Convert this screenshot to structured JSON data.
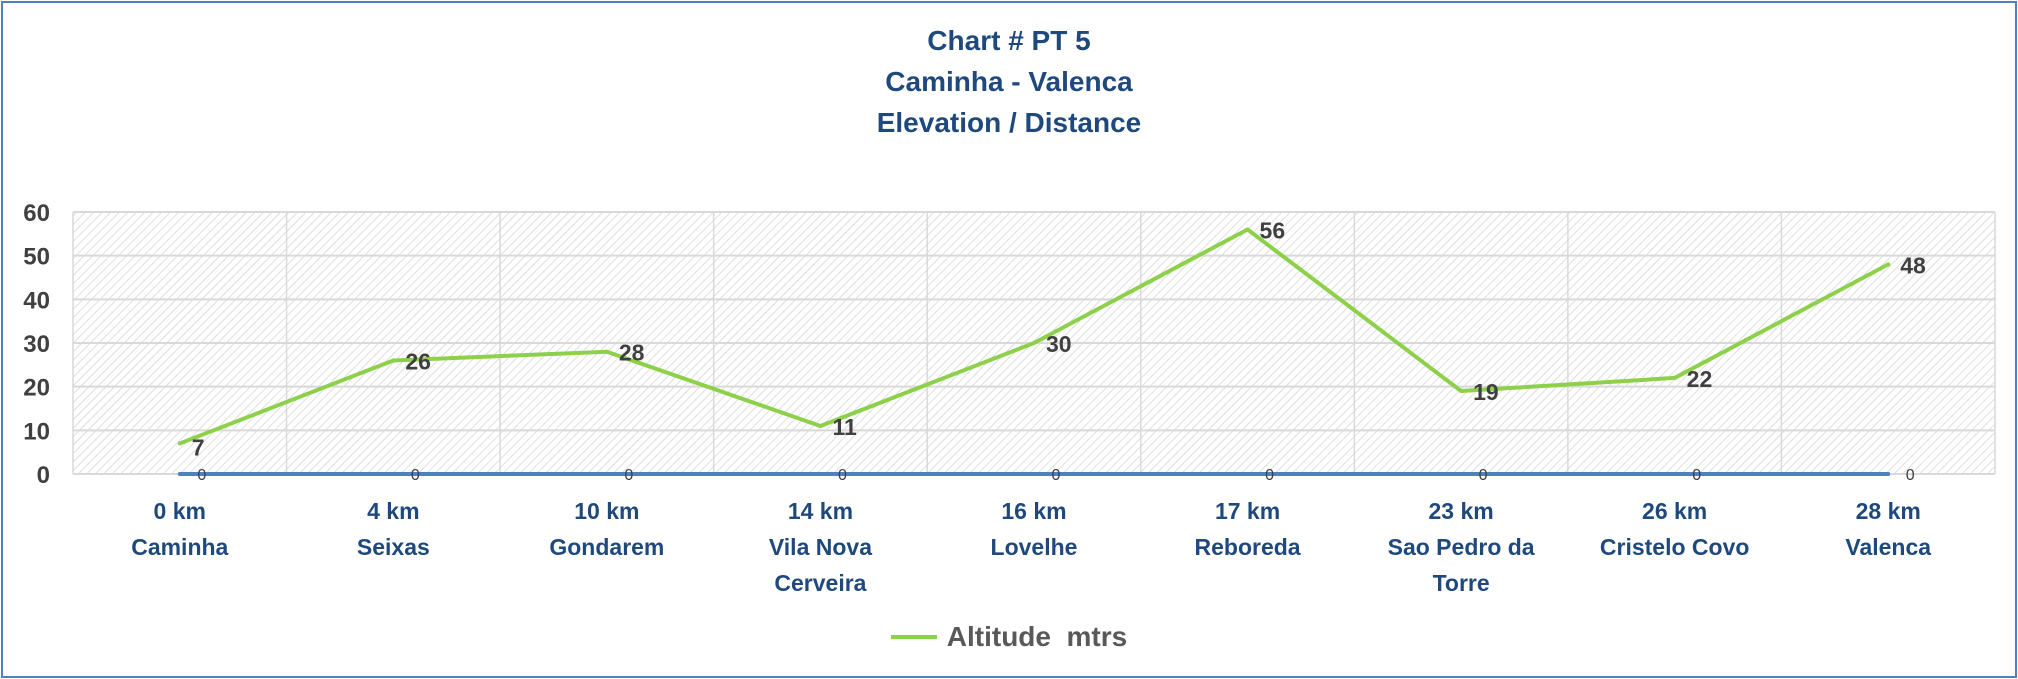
{
  "chart_data": {
    "type": "line",
    "title": [
      "Chart # PT 5",
      "Caminha - Valenca",
      "Elevation / Distance"
    ],
    "categories": [
      [
        "0 km",
        "Caminha"
      ],
      [
        "4 km",
        "Seixas"
      ],
      [
        "10 km",
        "Gondarem"
      ],
      [
        "14 km",
        "Vila Nova",
        "Cerveira"
      ],
      [
        "16 km",
        "Lovelhe"
      ],
      [
        "17 km",
        "Reboreda"
      ],
      [
        "23 km",
        "Sao Pedro da",
        "Torre"
      ],
      [
        "26 km",
        "Cristelo Covo"
      ],
      [
        "28 km",
        "Valenca"
      ]
    ],
    "series": [
      {
        "name": "Altitude  mtrs",
        "values": [
          7,
          26,
          28,
          11,
          30,
          56,
          19,
          22,
          48
        ],
        "color": "#8dd04a",
        "in_legend": true
      },
      {
        "values": [
          0,
          0,
          0,
          0,
          0,
          0,
          0,
          0,
          0
        ],
        "color": "#4f81bd",
        "in_legend": false
      }
    ],
    "ylim": [
      0,
      60
    ],
    "yticks": [
      0,
      10,
      20,
      30,
      40,
      50,
      60
    ],
    "grid": true,
    "plot_fill": "diagonal hatch",
    "legend_position": "bottom",
    "data_labels": true,
    "title_color": "#1f497d",
    "category_label_color": "#1f497d"
  }
}
